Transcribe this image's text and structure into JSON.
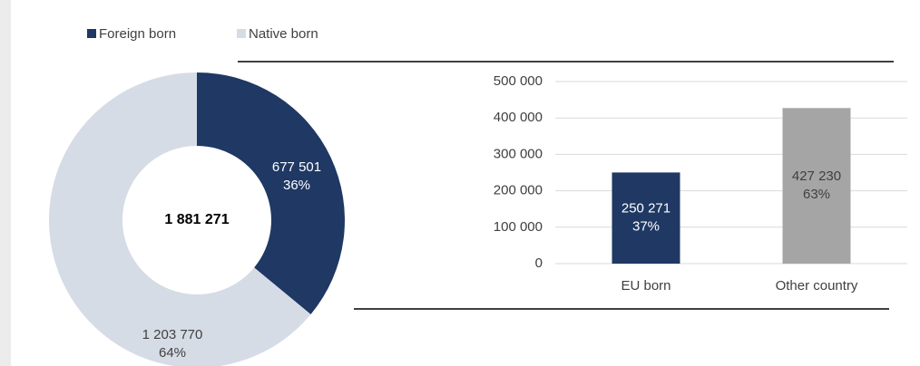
{
  "chart_data": [
    {
      "type": "donut",
      "categories": [
        "Foreign born",
        "Native born"
      ],
      "values": [
        677501,
        1203770
      ],
      "value_labels": [
        "677 501",
        "1 203 770"
      ],
      "percent_labels": [
        "36%",
        "64%"
      ],
      "colors": [
        "#1f3864",
        "#d6dce5"
      ],
      "center_label": "1 881 271",
      "legend": "top-left"
    },
    {
      "type": "bar",
      "categories": [
        "EU born",
        "Other country"
      ],
      "values": [
        250271,
        427230
      ],
      "value_labels": [
        "250 271",
        "427 230"
      ],
      "percent_labels": [
        "37%",
        "63%"
      ],
      "colors": [
        "#1f3864",
        "#a5a5a5"
      ],
      "ylim": [
        0,
        500000
      ],
      "yticks": [
        0,
        {
          "value": 100000,
          "label": "100 000"
        },
        {
          "value": 200000,
          "label": "200 000"
        },
        {
          "value": 300000,
          "label": "300 000"
        },
        {
          "value": 400000,
          "label": "400 000"
        },
        {
          "value": 500000,
          "label": "500 000"
        }
      ],
      "grid": true
    }
  ]
}
